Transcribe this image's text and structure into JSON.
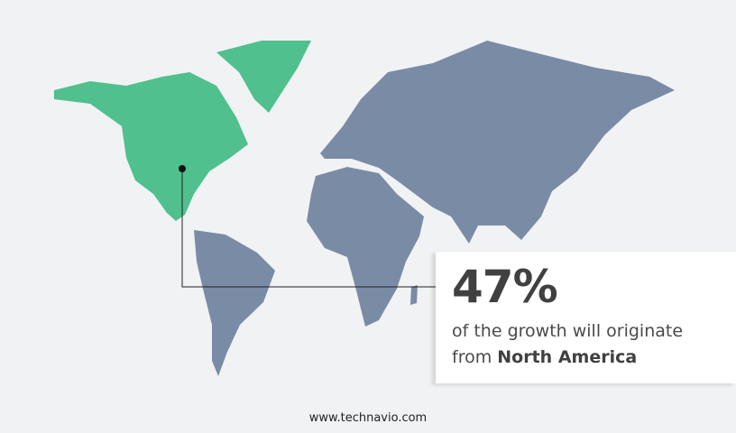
{
  "highlight": {
    "region": "North America",
    "percent": "47%",
    "text_line1": "of the growth will originate",
    "text_line2_prefix": "from",
    "text_line2_region": "North America"
  },
  "colors": {
    "highlight": "#4fc08e",
    "other": "#7a8ba6",
    "background": "#f1f2f4"
  },
  "footer": {
    "url": "www.technavio.com"
  }
}
